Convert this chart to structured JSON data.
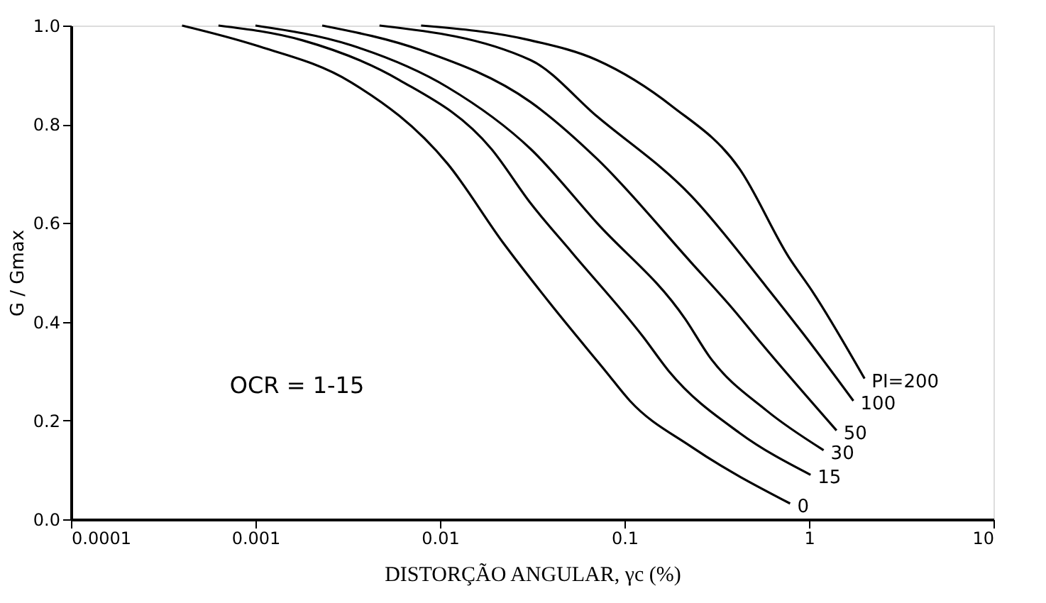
{
  "chart_data": {
    "type": "line",
    "xlabel": "DISTORÇÃO ANGULAR, γc (%)",
    "ylabel": "G / Gmax",
    "log": "x",
    "xlim": [
      0.0001,
      10
    ],
    "xticks": [
      0.0001,
      0.001,
      0.01,
      0.1,
      1,
      10
    ],
    "ylim": [
      0,
      1
    ],
    "yticks": [
      {
        "value": 0,
        "label": "0.0"
      },
      {
        "value": 0.2,
        "label": "0.2"
      },
      {
        "value": 0.4,
        "label": "0.4"
      },
      {
        "value": 0.6,
        "label": "0.6"
      },
      {
        "value": 0.8,
        "label": "0.8"
      },
      {
        "value": 1,
        "label": "1.0"
      }
    ],
    "grid": false,
    "legend": false,
    "marker": "none",
    "line_style": "solid",
    "annotations": [
      "OCR = 1-15"
    ],
    "series": [
      {
        "name": "0",
        "color": "#000000",
        "x": [
          0.0004,
          0.001,
          0.0033,
          0.011,
          0.022,
          0.039,
          0.079,
          0.107,
          0.23,
          0.79
        ],
        "values": [
          1.0,
          0.96,
          0.885,
          0.72,
          0.56,
          0.44,
          0.3,
          0.24,
          0.147,
          0.032
        ]
      },
      {
        "name": "15",
        "color": "#000000",
        "x": [
          0.00063,
          0.0018,
          0.006,
          0.019,
          0.031,
          0.052,
          0.126,
          0.174,
          0.42,
          1.02
        ],
        "values": [
          1.0,
          0.97,
          0.89,
          0.75,
          0.64,
          0.54,
          0.37,
          0.3,
          0.175,
          0.09
        ]
      },
      {
        "name": "30",
        "color": "#000000",
        "x": [
          0.001,
          0.0033,
          0.011,
          0.031,
          0.071,
          0.214,
          0.288,
          0.59,
          1.2
        ],
        "values": [
          1.0,
          0.96,
          0.875,
          0.75,
          0.6,
          0.405,
          0.33,
          0.22,
          0.14
        ]
      },
      {
        "name": "50",
        "color": "#000000",
        "x": [
          0.0023,
          0.0079,
          0.031,
          0.071,
          0.23,
          0.389,
          0.55,
          1.41
        ],
        "values": [
          1.0,
          0.95,
          0.845,
          0.73,
          0.52,
          0.425,
          0.357,
          0.18
        ]
      },
      {
        "name": "100",
        "color": "#000000",
        "x": [
          0.0047,
          0.031,
          0.071,
          0.23,
          0.59,
          0.93,
          1.74
        ],
        "values": [
          1.0,
          0.93,
          0.816,
          0.655,
          0.47,
          0.376,
          0.24
        ]
      },
      {
        "name": "PI=200",
        "color": "#000000",
        "x": [
          0.0079,
          0.031,
          0.071,
          0.182,
          0.42,
          0.78,
          1.05,
          2.0
        ],
        "values": [
          1.0,
          0.97,
          0.93,
          0.836,
          0.71,
          0.53,
          0.46,
          0.285
        ]
      }
    ]
  }
}
